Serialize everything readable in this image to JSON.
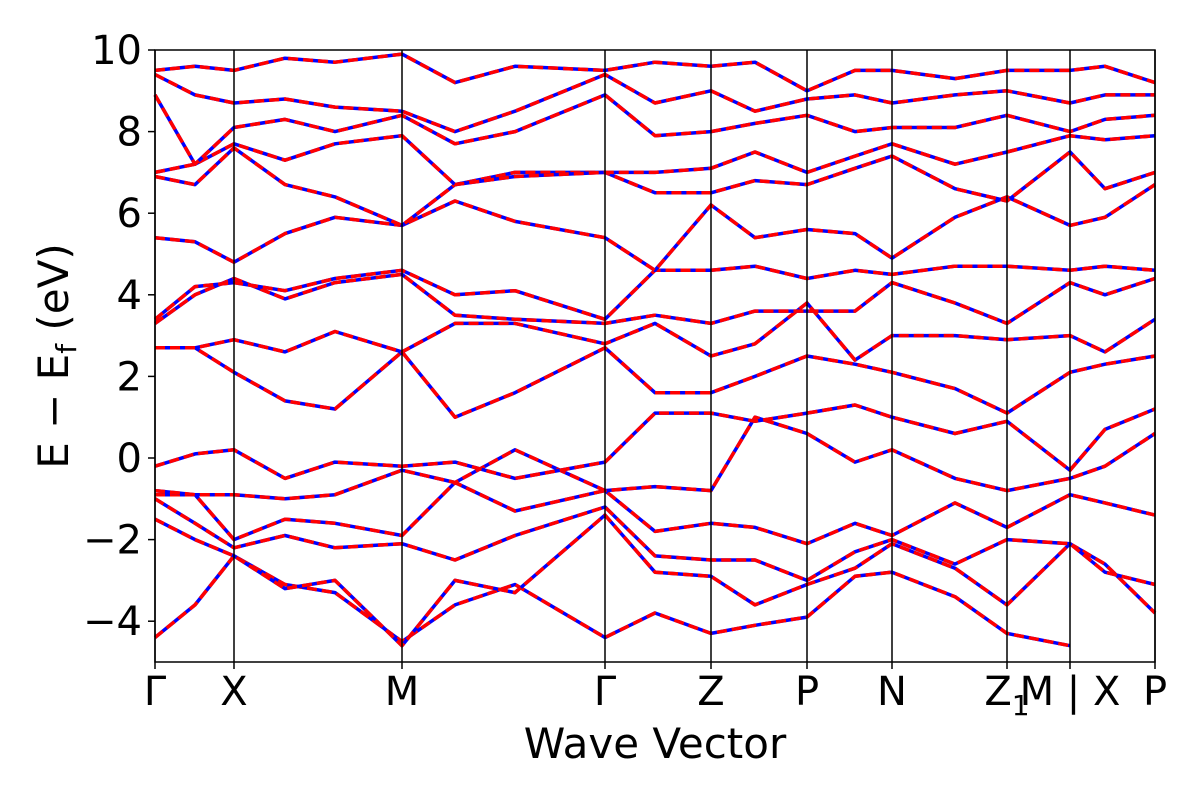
{
  "chart_data": {
    "type": "line",
    "xlabel": "Wave Vector",
    "ylabel": "E − E",
    "ylabel_sub": "f",
    "ylabel_unit": " (eV)",
    "ylim": [
      -5,
      10
    ],
    "yticks": [
      -4,
      -2,
      0,
      2,
      4,
      6,
      8,
      10
    ],
    "ytick_labels": [
      "−4",
      "−2",
      "0",
      "2",
      "4",
      "6",
      "8",
      "10"
    ],
    "xlim": [
      0,
      1
    ],
    "kpoints": [
      {
        "label": "Γ",
        "x": 0.0
      },
      {
        "label": "X",
        "x": 0.079
      },
      {
        "label": "M",
        "x": 0.247
      },
      {
        "label": "Γ",
        "x": 0.45
      },
      {
        "label": "Z",
        "x": 0.556
      },
      {
        "label": "P",
        "x": 0.652
      },
      {
        "label": "N",
        "x": 0.737
      },
      {
        "label": "Z",
        "label_sub": "1",
        "x": 0.852
      },
      {
        "label": "M | X",
        "x": 0.915
      },
      {
        "label": "P",
        "x": 1.0
      }
    ],
    "grid": false,
    "legend": "none",
    "series_colors": {
      "overlay": "#0000ff",
      "main": "#ff0000"
    },
    "bands": [
      [
        [
          0.0,
          -4.4
        ],
        [
          0.04,
          -3.6
        ],
        [
          0.079,
          -2.4
        ],
        [
          0.13,
          -3.1
        ],
        [
          0.18,
          -3.3
        ],
        [
          0.247,
          -4.5
        ],
        [
          0.3,
          -3.6
        ],
        [
          0.36,
          -3.1
        ],
        [
          0.45,
          -4.4
        ],
        [
          0.5,
          -3.8
        ],
        [
          0.556,
          -4.3
        ],
        [
          0.6,
          -4.1
        ],
        [
          0.652,
          -3.9
        ],
        [
          0.7,
          -2.9
        ],
        [
          0.737,
          -2.8
        ],
        [
          0.8,
          -3.4
        ],
        [
          0.852,
          -4.3
        ],
        [
          0.915,
          -4.6
        ]
      ],
      [
        [
          0.0,
          -1.5
        ],
        [
          0.04,
          -2.0
        ],
        [
          0.079,
          -2.4
        ],
        [
          0.13,
          -3.2
        ],
        [
          0.18,
          -3.0
        ],
        [
          0.247,
          -4.6
        ],
        [
          0.3,
          -3.0
        ],
        [
          0.36,
          -3.3
        ],
        [
          0.45,
          -1.4
        ],
        [
          0.5,
          -2.8
        ],
        [
          0.556,
          -2.9
        ],
        [
          0.6,
          -3.6
        ],
        [
          0.652,
          -3.1
        ],
        [
          0.7,
          -2.7
        ],
        [
          0.737,
          -2.1
        ],
        [
          0.8,
          -2.7
        ],
        [
          0.852,
          -3.6
        ],
        [
          0.915,
          -2.1
        ],
        [
          0.95,
          -2.6
        ],
        [
          1.0,
          -3.8
        ]
      ],
      [
        [
          0.0,
          -1.0
        ],
        [
          0.04,
          -1.6
        ],
        [
          0.079,
          -2.2
        ],
        [
          0.13,
          -1.9
        ],
        [
          0.18,
          -2.2
        ],
        [
          0.247,
          -2.1
        ],
        [
          0.3,
          -2.5
        ],
        [
          0.36,
          -1.9
        ],
        [
          0.45,
          -1.2
        ],
        [
          0.5,
          -2.4
        ],
        [
          0.556,
          -2.5
        ],
        [
          0.6,
          -2.5
        ],
        [
          0.652,
          -3.0
        ],
        [
          0.7,
          -2.3
        ],
        [
          0.737,
          -2.0
        ],
        [
          0.8,
          -2.6
        ],
        [
          0.852,
          -2.0
        ],
        [
          0.915,
          -2.1
        ],
        [
          0.95,
          -2.8
        ],
        [
          1.0,
          -3.1
        ]
      ],
      [
        [
          0.0,
          -0.9
        ],
        [
          0.04,
          -0.9
        ],
        [
          0.079,
          -2.0
        ],
        [
          0.13,
          -1.5
        ],
        [
          0.18,
          -1.6
        ],
        [
          0.247,
          -1.9
        ],
        [
          0.3,
          -0.6
        ],
        [
          0.36,
          -1.3
        ],
        [
          0.45,
          -0.8
        ],
        [
          0.5,
          -1.8
        ],
        [
          0.556,
          -1.6
        ],
        [
          0.6,
          -1.7
        ],
        [
          0.652,
          -2.1
        ],
        [
          0.7,
          -1.6
        ],
        [
          0.737,
          -1.9
        ],
        [
          0.8,
          -1.1
        ],
        [
          0.852,
          -1.7
        ],
        [
          0.915,
          -0.9
        ],
        [
          0.95,
          -1.1
        ],
        [
          1.0,
          -1.4
        ]
      ],
      [
        [
          0.0,
          -0.8
        ],
        [
          0.04,
          -0.9
        ],
        [
          0.079,
          -0.9
        ],
        [
          0.13,
          -1.0
        ],
        [
          0.18,
          -0.9
        ],
        [
          0.247,
          -0.3
        ],
        [
          0.3,
          -0.6
        ],
        [
          0.36,
          0.2
        ],
        [
          0.45,
          -0.8
        ],
        [
          0.5,
          -0.7
        ],
        [
          0.556,
          -0.8
        ],
        [
          0.6,
          1.0
        ],
        [
          0.652,
          0.6
        ],
        [
          0.7,
          -0.1
        ],
        [
          0.737,
          0.2
        ],
        [
          0.8,
          -0.5
        ],
        [
          0.852,
          -0.8
        ],
        [
          0.915,
          -0.5
        ],
        [
          0.95,
          -0.2
        ],
        [
          1.0,
          0.6
        ]
      ],
      [
        [
          0.0,
          -0.2
        ],
        [
          0.04,
          0.1
        ],
        [
          0.079,
          0.2
        ],
        [
          0.13,
          -0.5
        ],
        [
          0.18,
          -0.1
        ],
        [
          0.247,
          -0.2
        ],
        [
          0.3,
          -0.1
        ],
        [
          0.36,
          -0.5
        ],
        [
          0.45,
          -0.1
        ],
        [
          0.5,
          1.1
        ],
        [
          0.556,
          1.1
        ],
        [
          0.6,
          0.9
        ],
        [
          0.652,
          1.1
        ],
        [
          0.7,
          1.3
        ],
        [
          0.737,
          1.0
        ],
        [
          0.8,
          0.6
        ],
        [
          0.852,
          0.9
        ],
        [
          0.915,
          -0.3
        ],
        [
          0.95,
          0.7
        ],
        [
          1.0,
          1.2
        ]
      ],
      [
        [
          0.0,
          2.7
        ],
        [
          0.04,
          2.7
        ],
        [
          0.079,
          2.1
        ],
        [
          0.13,
          1.4
        ],
        [
          0.18,
          1.2
        ],
        [
          0.247,
          2.6
        ],
        [
          0.3,
          1.0
        ],
        [
          0.36,
          1.6
        ],
        [
          0.45,
          2.7
        ],
        [
          0.5,
          1.6
        ],
        [
          0.556,
          1.6
        ],
        [
          0.6,
          2.0
        ],
        [
          0.652,
          2.5
        ],
        [
          0.7,
          2.3
        ],
        [
          0.737,
          2.1
        ],
        [
          0.8,
          1.7
        ],
        [
          0.852,
          1.1
        ],
        [
          0.915,
          2.1
        ],
        [
          0.95,
          2.3
        ],
        [
          1.0,
          2.5
        ]
      ],
      [
        [
          0.0,
          2.7
        ],
        [
          0.04,
          2.7
        ],
        [
          0.079,
          2.9
        ],
        [
          0.13,
          2.6
        ],
        [
          0.18,
          3.1
        ],
        [
          0.247,
          2.6
        ],
        [
          0.3,
          3.3
        ],
        [
          0.36,
          3.3
        ],
        [
          0.45,
          2.8
        ],
        [
          0.5,
          3.3
        ],
        [
          0.556,
          2.5
        ],
        [
          0.6,
          2.8
        ],
        [
          0.652,
          3.8
        ],
        [
          0.7,
          2.4
        ],
        [
          0.737,
          3.0
        ],
        [
          0.8,
          3.0
        ],
        [
          0.852,
          2.9
        ],
        [
          0.915,
          3.0
        ],
        [
          0.95,
          2.6
        ],
        [
          1.0,
          3.4
        ]
      ],
      [
        [
          0.0,
          3.3
        ],
        [
          0.04,
          4.0
        ],
        [
          0.079,
          4.4
        ],
        [
          0.13,
          3.9
        ],
        [
          0.18,
          4.3
        ],
        [
          0.247,
          4.5
        ],
        [
          0.3,
          3.5
        ],
        [
          0.36,
          3.4
        ],
        [
          0.45,
          3.3
        ],
        [
          0.5,
          3.5
        ],
        [
          0.556,
          3.3
        ],
        [
          0.6,
          3.6
        ],
        [
          0.652,
          3.6
        ],
        [
          0.7,
          3.6
        ],
        [
          0.737,
          4.3
        ],
        [
          0.8,
          3.8
        ],
        [
          0.852,
          3.3
        ],
        [
          0.915,
          4.3
        ],
        [
          0.95,
          4.0
        ],
        [
          1.0,
          4.4
        ]
      ],
      [
        [
          0.0,
          3.4
        ],
        [
          0.04,
          4.2
        ],
        [
          0.079,
          4.3
        ],
        [
          0.13,
          4.1
        ],
        [
          0.18,
          4.4
        ],
        [
          0.247,
          4.6
        ],
        [
          0.3,
          4.0
        ],
        [
          0.36,
          4.1
        ],
        [
          0.45,
          3.4
        ],
        [
          0.5,
          4.6
        ],
        [
          0.556,
          4.6
        ],
        [
          0.6,
          4.7
        ],
        [
          0.652,
          4.4
        ],
        [
          0.7,
          4.6
        ],
        [
          0.737,
          4.5
        ],
        [
          0.8,
          4.7
        ],
        [
          0.852,
          4.7
        ],
        [
          0.915,
          4.6
        ],
        [
          0.95,
          4.7
        ],
        [
          1.0,
          4.6
        ]
      ],
      [
        [
          0.0,
          5.4
        ],
        [
          0.04,
          5.3
        ],
        [
          0.079,
          4.8
        ],
        [
          0.13,
          5.5
        ],
        [
          0.18,
          5.9
        ],
        [
          0.247,
          5.7
        ],
        [
          0.3,
          6.3
        ],
        [
          0.36,
          5.8
        ],
        [
          0.45,
          5.4
        ],
        [
          0.5,
          4.6
        ],
        [
          0.556,
          6.2
        ],
        [
          0.6,
          5.4
        ],
        [
          0.652,
          5.6
        ],
        [
          0.7,
          5.5
        ],
        [
          0.737,
          4.9
        ],
        [
          0.8,
          5.9
        ],
        [
          0.852,
          6.4
        ],
        [
          0.915,
          5.7
        ],
        [
          0.95,
          5.9
        ],
        [
          1.0,
          6.7
        ]
      ],
      [
        [
          0.0,
          6.9
        ],
        [
          0.04,
          6.7
        ],
        [
          0.079,
          7.6
        ],
        [
          0.13,
          6.7
        ],
        [
          0.18,
          6.4
        ],
        [
          0.247,
          5.7
        ],
        [
          0.3,
          6.7
        ],
        [
          0.36,
          7.0
        ],
        [
          0.45,
          7.0
        ],
        [
          0.5,
          6.5
        ],
        [
          0.556,
          6.5
        ],
        [
          0.6,
          6.8
        ],
        [
          0.652,
          6.7
        ],
        [
          0.7,
          7.1
        ],
        [
          0.737,
          7.4
        ],
        [
          0.8,
          6.6
        ],
        [
          0.852,
          6.3
        ],
        [
          0.915,
          7.5
        ],
        [
          0.95,
          6.6
        ],
        [
          1.0,
          7.0
        ]
      ],
      [
        [
          0.0,
          7.0
        ],
        [
          0.04,
          7.2
        ],
        [
          0.079,
          7.7
        ],
        [
          0.13,
          7.3
        ],
        [
          0.18,
          7.7
        ],
        [
          0.247,
          7.9
        ],
        [
          0.3,
          6.7
        ],
        [
          0.36,
          6.9
        ],
        [
          0.45,
          7.0
        ],
        [
          0.5,
          7.0
        ],
        [
          0.556,
          7.1
        ],
        [
          0.6,
          7.5
        ],
        [
          0.652,
          7.0
        ],
        [
          0.7,
          7.4
        ],
        [
          0.737,
          7.7
        ],
        [
          0.8,
          7.2
        ],
        [
          0.852,
          7.5
        ],
        [
          0.915,
          7.9
        ],
        [
          0.95,
          7.8
        ],
        [
          1.0,
          7.9
        ]
      ],
      [
        [
          0.0,
          8.9
        ],
        [
          0.04,
          7.2
        ],
        [
          0.079,
          8.1
        ],
        [
          0.13,
          8.3
        ],
        [
          0.18,
          8.0
        ],
        [
          0.247,
          8.4
        ],
        [
          0.3,
          7.7
        ],
        [
          0.36,
          8.0
        ],
        [
          0.45,
          8.9
        ],
        [
          0.5,
          7.9
        ],
        [
          0.556,
          8.0
        ],
        [
          0.6,
          8.2
        ],
        [
          0.652,
          8.4
        ],
        [
          0.7,
          8.0
        ],
        [
          0.737,
          8.1
        ],
        [
          0.8,
          8.1
        ],
        [
          0.852,
          8.4
        ],
        [
          0.915,
          8.0
        ],
        [
          0.95,
          8.3
        ],
        [
          1.0,
          8.4
        ]
      ],
      [
        [
          0.0,
          9.4
        ],
        [
          0.04,
          8.9
        ],
        [
          0.079,
          8.7
        ],
        [
          0.13,
          8.8
        ],
        [
          0.18,
          8.6
        ],
        [
          0.247,
          8.5
        ],
        [
          0.3,
          8.0
        ],
        [
          0.36,
          8.5
        ],
        [
          0.45,
          9.4
        ],
        [
          0.5,
          8.7
        ],
        [
          0.556,
          9.0
        ],
        [
          0.6,
          8.5
        ],
        [
          0.652,
          8.8
        ],
        [
          0.7,
          8.9
        ],
        [
          0.737,
          8.7
        ],
        [
          0.8,
          8.9
        ],
        [
          0.852,
          9.0
        ],
        [
          0.915,
          8.7
        ],
        [
          0.95,
          8.9
        ],
        [
          1.0,
          8.9
        ]
      ],
      [
        [
          0.0,
          9.5
        ],
        [
          0.04,
          9.6
        ],
        [
          0.079,
          9.5
        ],
        [
          0.13,
          9.8
        ],
        [
          0.18,
          9.7
        ],
        [
          0.247,
          9.9
        ],
        [
          0.3,
          9.2
        ],
        [
          0.36,
          9.6
        ],
        [
          0.45,
          9.5
        ],
        [
          0.5,
          9.7
        ],
        [
          0.556,
          9.6
        ],
        [
          0.6,
          9.7
        ],
        [
          0.652,
          9.0
        ],
        [
          0.7,
          9.5
        ],
        [
          0.737,
          9.5
        ],
        [
          0.8,
          9.3
        ],
        [
          0.852,
          9.5
        ],
        [
          0.915,
          9.5
        ],
        [
          0.95,
          9.6
        ],
        [
          1.0,
          9.2
        ]
      ]
    ]
  }
}
